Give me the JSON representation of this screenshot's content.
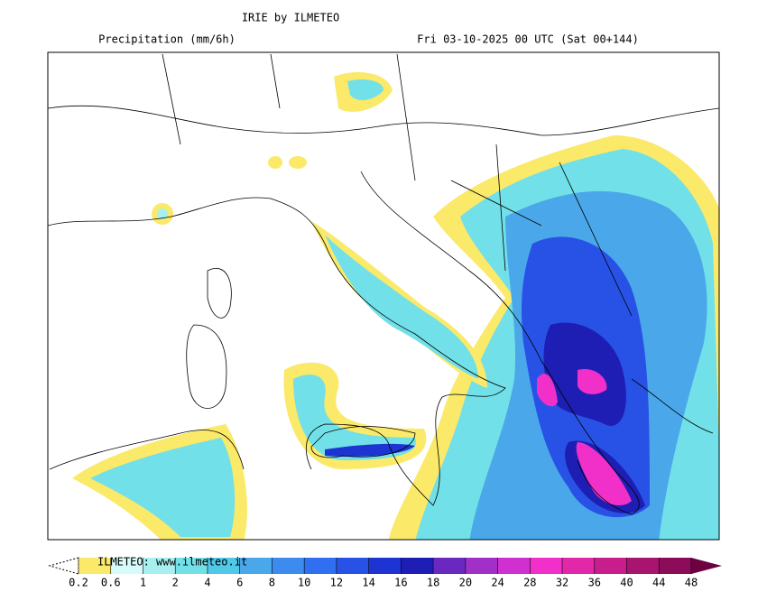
{
  "header": {
    "title": "IRIE by ILMETEO",
    "field": "Precipitation (mm/6h)",
    "valid_time": "Fri 03-10-2025 00 UTC (Sat 00+144)"
  },
  "legend": {
    "watermark": "ILMETEO: www.ilmeteo.it",
    "levels": [
      0.2,
      0.6,
      1,
      2,
      4,
      6,
      8,
      10,
      12,
      14,
      16,
      18,
      20,
      24,
      28,
      32,
      36,
      40,
      44,
      48
    ],
    "colors": [
      "#ffffff",
      "#fbe96a",
      "#d6fbfb",
      "#a8f0f0",
      "#72e0e8",
      "#50c8e8",
      "#4aa8ea",
      "#3c8cf0",
      "#3070f0",
      "#2852e6",
      "#1e34d2",
      "#1e1eb4",
      "#6a28c0",
      "#a030c8",
      "#d030d0",
      "#f030c8",
      "#e028a8",
      "#c81e8c",
      "#a81470",
      "#8c0c5a",
      "#6e0040"
    ]
  }
}
